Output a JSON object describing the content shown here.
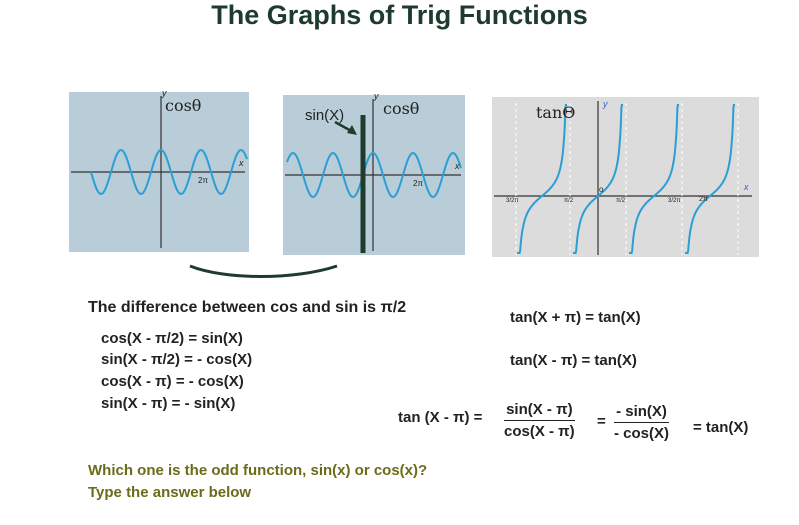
{
  "title": "The Graphs of Trig Functions",
  "graph1": {
    "func_label": "cosθ",
    "axis_y": "y",
    "axis_x": "x",
    "tick": "2π"
  },
  "graph2": {
    "func_label": "cosθ",
    "arrow_label": "sin(X)",
    "axis_y": "y",
    "axis_x": "x",
    "tick": "2π"
  },
  "graph3": {
    "func_label": "tanΘ",
    "axis_y": "y",
    "axis_x": "x",
    "origin": "o",
    "ticks": [
      "3/2π",
      "π/2",
      "π/2",
      "3/2π",
      "2π"
    ]
  },
  "statement": "The difference between cos and sin is π/2",
  "identities": [
    "cos(X - π/2) = sin(X)",
    "sin(X - π/2) = - cos(X)",
    "cos(X - π) = - cos(X)",
    "sin(X - π) = - sin(X)"
  ],
  "tan_identities": [
    "tan(X + π) = tan(X)",
    "tan(X - π) = tan(X)"
  ],
  "tan_derivation": {
    "lhs": "tan (X - π) =",
    "frac1_num": "sin(X - π)",
    "frac1_den": "cos(X - π)",
    "equals": "=",
    "frac2_num": "- sin(X)",
    "frac2_den": "- cos(X)",
    "rhs": "= tan(X)"
  },
  "question_line1": "Which one is the odd function, sin(x) or cos(x)?",
  "question_line2": "Type the answer below",
  "colors": {
    "title": "#1f3b2d",
    "wave": "#2a9fd6",
    "panel": "#b9cdd8",
    "question": "#6b6b1a"
  }
}
